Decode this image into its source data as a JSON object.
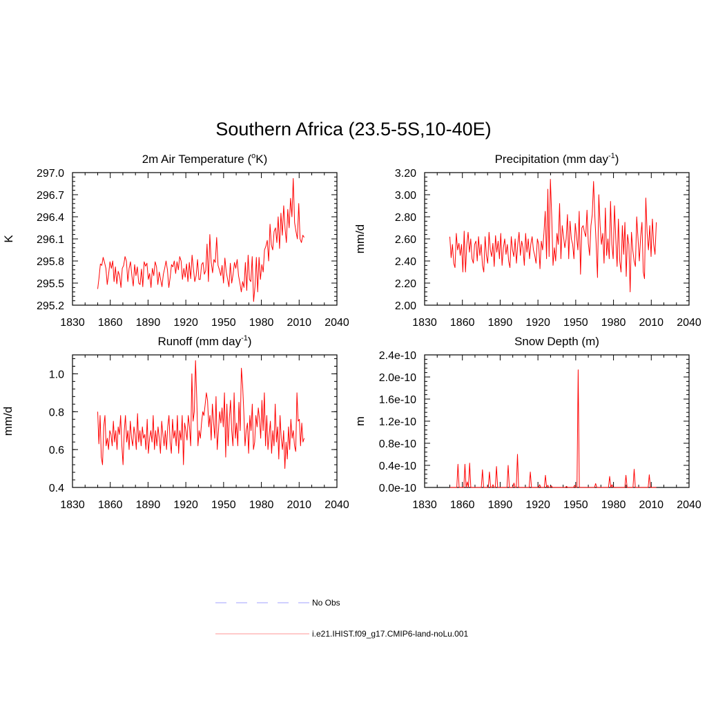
{
  "title": "Southern Africa (23.5-5S,10-40E)",
  "colors": {
    "model": "#ff0000",
    "obs": "#b3b3ff",
    "axis": "#000000"
  },
  "legend": {
    "obs_label": "No Obs",
    "model_label": "i.e21.IHIST.f09_g17.CMIP6-land-noLu.001"
  },
  "chart_data": [
    {
      "type": "line",
      "title": "2m Air Temperature (oK)",
      "title_base": "2m Air Temperature (",
      "title_sup": "o",
      "title_tail": "K)",
      "ylabel": "K",
      "xlim": [
        1830,
        2040
      ],
      "ylim": [
        295.2,
        297.0
      ],
      "x_ticks": [
        "1830",
        "1860",
        "1890",
        "1920",
        "1950",
        "1980",
        "2010",
        "2040"
      ],
      "y_ticks": [
        "295.2",
        "295.5",
        "295.8",
        "296.1",
        "296.4",
        "296.7",
        "297.0"
      ],
      "x_start": 1850,
      "series": [
        {
          "name": "i.e21.IHIST.f09_g17.CMIP6-land-noLu.001",
          "values": [
            295.42,
            295.58,
            295.76,
            295.74,
            295.85,
            295.78,
            295.7,
            295.48,
            295.62,
            295.79,
            295.7,
            295.8,
            295.52,
            295.72,
            295.49,
            295.66,
            295.6,
            295.44,
            295.7,
            295.74,
            295.86,
            295.8,
            295.52,
            295.7,
            295.79,
            295.6,
            295.46,
            295.75,
            295.6,
            295.72,
            295.5,
            295.48,
            295.69,
            295.45,
            295.79,
            295.73,
            295.77,
            295.55,
            295.63,
            295.44,
            295.7,
            295.6,
            295.79,
            295.72,
            295.48,
            295.65,
            295.55,
            295.45,
            295.62,
            295.7,
            295.8,
            295.68,
            295.44,
            295.58,
            295.75,
            295.72,
            295.8,
            295.63,
            295.79,
            295.68,
            295.86,
            295.8,
            295.55,
            295.7,
            295.58,
            295.76,
            295.52,
            295.78,
            295.56,
            295.88,
            295.7,
            295.52,
            295.6,
            295.82,
            295.55,
            295.55,
            295.75,
            295.78,
            295.62,
            295.67,
            296.03,
            295.52,
            296.16,
            295.78,
            295.64,
            295.82,
            295.78,
            296.12,
            295.74,
            295.68,
            295.6,
            295.74,
            295.5,
            295.84,
            295.65,
            295.55,
            295.45,
            295.77,
            295.5,
            295.62,
            295.78,
            295.7,
            295.82,
            295.6,
            295.5,
            295.38,
            295.52,
            295.44,
            295.78,
            295.4,
            295.88,
            295.55,
            295.52,
            295.86,
            295.25,
            295.45,
            295.85,
            295.38,
            295.85,
            295.55,
            295.75,
            295.65,
            295.95,
            296.0,
            296.08,
            295.8,
            296.3,
            296.02,
            295.95,
            296.2,
            296.25,
            296.05,
            296.4,
            295.97,
            296.45,
            296.15,
            296.55,
            296.25,
            296.05,
            296.5,
            296.25,
            296.65,
            296.4,
            296.92,
            296.32,
            296.2,
            296.1,
            296.58,
            296.1,
            296.05,
            296.15,
            296.12
          ]
        }
      ]
    },
    {
      "type": "line",
      "title": "Precipitation (mm day-1)",
      "title_base": "Precipitation (mm day",
      "title_sup": "-1",
      "title_tail": ")",
      "ylabel": "mm/d",
      "xlim": [
        1830,
        2040
      ],
      "ylim": [
        2.0,
        3.2
      ],
      "x_ticks": [
        "1830",
        "1860",
        "1890",
        "1920",
        "1950",
        "1980",
        "2010",
        "2040"
      ],
      "y_ticks": [
        "2.00",
        "2.20",
        "2.40",
        "2.60",
        "2.80",
        "3.00",
        "3.20"
      ],
      "x_start": 1850,
      "series": [
        {
          "name": "i.e21.IHIST.f09_g17.CMIP6-land-noLu.001",
          "values": [
            2.62,
            2.43,
            2.55,
            2.38,
            2.34,
            2.65,
            2.5,
            2.56,
            2.45,
            2.55,
            2.3,
            2.67,
            2.3,
            2.55,
            2.66,
            2.48,
            2.6,
            2.42,
            2.38,
            2.55,
            2.58,
            2.4,
            2.62,
            2.45,
            2.55,
            2.36,
            2.3,
            2.62,
            2.45,
            2.38,
            2.66,
            2.5,
            2.44,
            2.56,
            2.35,
            2.63,
            2.48,
            2.58,
            2.42,
            2.65,
            2.36,
            2.52,
            2.6,
            2.46,
            2.55,
            2.4,
            2.34,
            2.62,
            2.5,
            2.44,
            2.6,
            2.38,
            2.55,
            2.66,
            2.45,
            2.58,
            2.52,
            2.36,
            2.65,
            2.48,
            2.6,
            2.42,
            2.55,
            2.62,
            2.5,
            2.45,
            2.38,
            2.6,
            2.55,
            2.33,
            2.58,
            2.5,
            2.65,
            2.85,
            2.42,
            3.05,
            2.44,
            3.14,
            2.8,
            2.36,
            2.52,
            2.4,
            2.65,
            2.55,
            2.92,
            2.42,
            2.72,
            2.62,
            2.52,
            2.6,
            2.82,
            2.42,
            2.76,
            2.6,
            2.55,
            2.42,
            2.74,
            2.62,
            2.5,
            2.85,
            2.28,
            2.7,
            2.72,
            2.66,
            2.62,
            2.86,
            2.56,
            2.45,
            2.72,
            2.82,
            3.12,
            2.8,
            2.55,
            2.25,
            3.0,
            2.72,
            2.55,
            2.65,
            2.38,
            2.88,
            2.45,
            2.6,
            2.42,
            2.94,
            2.55,
            2.42,
            2.9,
            2.6,
            2.35,
            2.78,
            2.4,
            2.3,
            2.72,
            2.46,
            2.75,
            2.26,
            2.64,
            2.55,
            2.12,
            2.66,
            2.5,
            2.4,
            2.35,
            2.8,
            2.6,
            2.4,
            2.62,
            2.75,
            2.3,
            2.24,
            2.97,
            2.65,
            2.5,
            2.72,
            2.44,
            2.78,
            2.55,
            2.46,
            2.75
          ]
        }
      ]
    },
    {
      "type": "line",
      "title": "Runoff (mm day-1)",
      "title_base": "Runoff (mm day",
      "title_sup": "-1",
      "title_tail": ")",
      "ylabel": "mm/d",
      "xlim": [
        1830,
        2040
      ],
      "ylim": [
        0.4,
        1.1
      ],
      "x_ticks": [
        "1830",
        "1860",
        "1890",
        "1920",
        "1950",
        "1980",
        "2010",
        "2040"
      ],
      "y_ticks": [
        "0.4",
        "0.6",
        "0.8",
        "1.0"
      ],
      "y_tick_values": [
        0.4,
        0.6,
        0.8,
        1.0
      ],
      "x_start": 1850,
      "series": [
        {
          "name": "i.e21.IHIST.f09_g17.CMIP6-land-noLu.001",
          "values": [
            0.8,
            0.63,
            0.78,
            0.56,
            0.52,
            0.72,
            0.78,
            0.62,
            0.66,
            0.6,
            0.7,
            0.68,
            0.62,
            0.75,
            0.64,
            0.7,
            0.6,
            0.72,
            0.68,
            0.78,
            0.62,
            0.52,
            0.7,
            0.78,
            0.64,
            0.7,
            0.6,
            0.75,
            0.66,
            0.62,
            0.72,
            0.68,
            0.6,
            0.79,
            0.64,
            0.7,
            0.62,
            0.72,
            0.66,
            0.68,
            0.6,
            0.76,
            0.58,
            0.66,
            0.7,
            0.64,
            0.78,
            0.6,
            0.7,
            0.62,
            0.72,
            0.66,
            0.58,
            0.75,
            0.68,
            0.62,
            0.7,
            0.6,
            0.72,
            0.78,
            0.64,
            0.58,
            0.76,
            0.66,
            0.7,
            0.62,
            0.78,
            0.58,
            0.7,
            0.65,
            0.78,
            0.52,
            0.74,
            0.7,
            0.65,
            0.78,
            0.72,
            0.62,
            1.0,
            0.75,
            0.8,
            1.07,
            0.88,
            0.62,
            0.7,
            0.66,
            0.74,
            0.8,
            0.78,
            0.84,
            0.9,
            0.86,
            0.72,
            0.78,
            0.65,
            0.84,
            0.74,
            0.66,
            0.88,
            0.6,
            0.7,
            0.8,
            0.74,
            0.82,
            0.72,
            0.9,
            0.56,
            0.84,
            0.62,
            0.76,
            0.86,
            0.7,
            0.62,
            0.9,
            0.66,
            0.74,
            0.62,
            0.85,
            0.7,
            1.03,
            0.94,
            0.8,
            0.62,
            0.7,
            0.74,
            0.58,
            0.78,
            0.7,
            0.84,
            0.6,
            0.64,
            0.78,
            0.72,
            0.82,
            0.76,
            0.66,
            0.86,
            0.7,
            0.9,
            0.62,
            0.78,
            0.6,
            0.68,
            0.75,
            0.58,
            0.7,
            0.62,
            0.84,
            0.64,
            0.72,
            0.55,
            0.78,
            0.66,
            0.6,
            0.7,
            0.5,
            0.64,
            0.55,
            0.72,
            0.6,
            0.76,
            0.66,
            0.7,
            0.62,
            0.59,
            0.9,
            0.75,
            0.76,
            0.62,
            0.74,
            0.64,
            0.66
          ]
        }
      ]
    },
    {
      "type": "line",
      "title": "Snow Depth (m)",
      "title_base": "Snow Depth (m)",
      "title_sup": "",
      "title_tail": "",
      "ylabel": "m",
      "xlim": [
        1830,
        2040
      ],
      "ylim": [
        0,
        2.4e-10
      ],
      "x_ticks": [
        "1830",
        "1860",
        "1890",
        "1920",
        "1950",
        "1980",
        "2010",
        "2040"
      ],
      "y_ticks": [
        "0.0e-10",
        "0.4e-10",
        "0.8e-10",
        "1.2e-10",
        "1.6e-10",
        "2.0e-10",
        "2.4e-10"
      ],
      "x_start": 1850,
      "series": [
        {
          "name": "i.e21.IHIST.f09_g17.CMIP6-land-noLu.001",
          "values": [
            0,
            0,
            0,
            0,
            0,
            0,
            0,
            4.2e-11,
            0,
            0,
            0,
            0,
            0,
            4.2e-11,
            0,
            1e-11,
            0,
            4.4e-11,
            0,
            0,
            0,
            0,
            0,
            0,
            0,
            0,
            0,
            0,
            3.2e-11,
            0,
            0,
            0,
            0,
            0,
            2.8e-11,
            0,
            0,
            5e-12,
            0,
            0,
            3.8e-11,
            0,
            0,
            0,
            0,
            0,
            0,
            0,
            0,
            0,
            4e-11,
            0,
            0,
            0,
            0,
            8e-12,
            0,
            0,
            6e-11,
            0,
            0,
            0,
            0,
            0,
            0,
            0,
            0,
            0,
            0,
            2.8e-11,
            0,
            0,
            0,
            0,
            0,
            0,
            0,
            5e-12,
            0,
            0,
            0,
            0,
            2.2e-11,
            0,
            4e-12,
            0,
            0,
            3e-12,
            0,
            0,
            0,
            0,
            0,
            0,
            0,
            0,
            0,
            0,
            0,
            0,
            2e-12,
            0,
            0,
            0,
            0,
            0,
            0,
            4e-12,
            0,
            0,
            2.13e-10,
            0,
            0,
            0,
            0,
            0,
            0,
            0,
            0,
            0,
            0,
            0,
            0,
            0,
            0,
            7e-12,
            0,
            0,
            0,
            0,
            0,
            0,
            0,
            0,
            0,
            0,
            0,
            2e-11,
            0,
            5e-12,
            0,
            0,
            0,
            0,
            0,
            0,
            0,
            0,
            0,
            0,
            0,
            2.2e-11,
            0,
            0,
            0,
            0,
            0,
            0,
            3.3e-11,
            0,
            0,
            0,
            0,
            0,
            0,
            0,
            0,
            0,
            0,
            0,
            0,
            2.3e-11,
            0,
            0,
            0,
            0,
            0,
            0
          ]
        }
      ]
    }
  ]
}
